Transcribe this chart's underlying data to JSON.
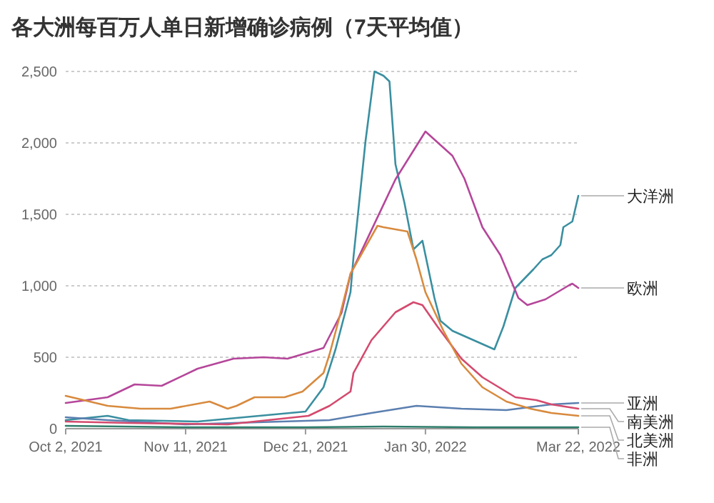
{
  "chart_data": {
    "type": "line",
    "title": "各大洲每百万人单日新增确诊病例（7天平均值）",
    "xlim": [
      "2021-10-02",
      "2022-03-22"
    ],
    "xticks": [
      {
        "value": "2021-10-02",
        "label": "Oct 2, 2021"
      },
      {
        "value": "2021-11-11",
        "label": "Nov 11, 2021"
      },
      {
        "value": "2021-12-21",
        "label": "Dec 21, 2021"
      },
      {
        "value": "2022-01-30",
        "label": "Jan 30, 2022"
      },
      {
        "value": "2022-03-22",
        "label": "Mar 22, 2022"
      }
    ],
    "ylim": [
      0,
      2500
    ],
    "yticks": [
      0,
      {
        "value": 500,
        "label": "500"
      },
      {
        "value": 1000,
        "label": "1,000"
      },
      {
        "value": 1500,
        "label": "1,500"
      },
      {
        "value": 2000,
        "label": "2,000"
      },
      {
        "value": 2500,
        "label": "2,500"
      }
    ],
    "grid": "y",
    "series": [
      {
        "name": "大洋洲",
        "color": "#3a8fa0",
        "x": [
          "2021-10-02",
          "2021-10-16",
          "2021-10-23",
          "2021-11-15",
          "2021-12-21",
          "2021-12-27",
          "2021-12-31",
          "2022-01-05",
          "2022-01-06",
          "2022-01-10",
          "2022-01-13",
          "2022-01-16",
          "2022-01-18",
          "2022-01-20",
          "2022-01-23",
          "2022-01-26",
          "2022-01-29",
          "2022-02-02",
          "2022-02-04",
          "2022-02-08",
          "2022-02-15",
          "2022-02-22",
          "2022-02-25",
          "2022-03-01",
          "2022-03-07",
          "2022-03-10",
          "2022-03-13",
          "2022-03-16",
          "2022-03-17",
          "2022-03-20",
          "2022-03-22"
        ],
        "values": [
          60,
          90,
          60,
          50,
          120,
          290,
          555,
          955,
          1200,
          2010,
          2500,
          2470,
          2430,
          1850,
          1580,
          1255,
          1315,
          915,
          755,
          685,
          620,
          555,
          715,
          985,
          1115,
          1185,
          1215,
          1285,
          1410,
          1450,
          1630
        ]
      },
      {
        "name": "欧洲",
        "color": "#b5469a",
        "x": [
          "2021-10-02",
          "2021-10-16",
          "2021-10-25",
          "2021-11-03",
          "2021-11-15",
          "2021-11-27",
          "2021-12-07",
          "2021-12-15",
          "2021-12-27",
          "2022-01-02",
          "2022-01-05",
          "2022-01-20",
          "2022-01-30",
          "2022-02-08",
          "2022-02-12",
          "2022-02-18",
          "2022-02-24",
          "2022-03-02",
          "2022-03-05",
          "2022-03-11",
          "2022-03-19",
          "2022-03-20",
          "2022-03-22"
        ],
        "values": [
          180,
          220,
          310,
          300,
          420,
          490,
          500,
          490,
          565,
          810,
          1080,
          1745,
          2080,
          1910,
          1750,
          1410,
          1215,
          915,
          865,
          905,
          1005,
          1015,
          985
        ]
      },
      {
        "name": "亚洲",
        "color": "#5b7fb0",
        "x": [
          "2021-10-02",
          "2021-10-16",
          "2021-11-11",
          "2021-12-29",
          "2022-01-12",
          "2022-01-27",
          "2022-02-11",
          "2022-02-26",
          "2022-03-13",
          "2022-03-22"
        ],
        "values": [
          80,
          60,
          30,
          60,
          110,
          160,
          140,
          130,
          170,
          180
        ]
      },
      {
        "name": "南美洲",
        "color": "#d44a6e",
        "x": [
          "2021-10-02",
          "2021-10-23",
          "2021-11-25",
          "2021-12-22",
          "2021-12-29",
          "2022-01-05",
          "2022-01-06",
          "2022-01-12",
          "2022-01-20",
          "2022-01-26",
          "2022-01-29",
          "2022-02-03",
          "2022-02-11",
          "2022-02-18",
          "2022-03-01",
          "2022-03-08",
          "2022-03-13",
          "2022-03-22"
        ],
        "values": [
          50,
          40,
          30,
          90,
          160,
          260,
          390,
          620,
          815,
          885,
          865,
          715,
          490,
          360,
          220,
          200,
          170,
          140
        ]
      },
      {
        "name": "北美洲",
        "color": "#d88a3e",
        "x": [
          "2021-10-02",
          "2021-10-16",
          "2021-10-27",
          "2021-11-06",
          "2021-11-19",
          "2021-11-25",
          "2021-11-28",
          "2021-12-04",
          "2021-12-14",
          "2021-12-20",
          "2021-12-27",
          "2021-12-29",
          "2022-01-01",
          "2022-01-05",
          "2022-01-14",
          "2022-01-16",
          "2022-01-24",
          "2022-01-27",
          "2022-01-30",
          "2022-02-05",
          "2022-02-11",
          "2022-02-18",
          "2022-02-26",
          "2022-03-06",
          "2022-03-13",
          "2022-03-22"
        ],
        "values": [
          230,
          160,
          140,
          140,
          190,
          140,
          160,
          220,
          220,
          260,
          390,
          520,
          755,
          1085,
          1420,
          1410,
          1380,
          1185,
          955,
          685,
          455,
          290,
          190,
          140,
          110,
          90
        ]
      },
      {
        "name": "非洲",
        "color": "#2e7d6b",
        "x": [
          "2021-10-02",
          "2021-11-11",
          "2021-12-21",
          "2022-01-16",
          "2022-02-15",
          "2022-03-22"
        ],
        "values": [
          20,
          10,
          10,
          15,
          10,
          10
        ]
      }
    ]
  }
}
